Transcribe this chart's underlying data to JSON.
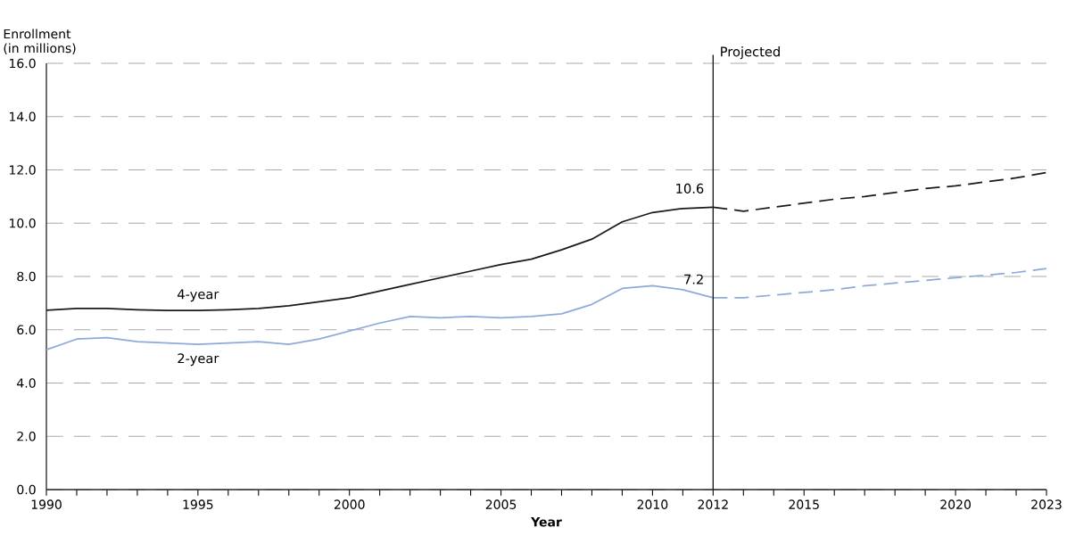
{
  "chart_data": {
    "type": "line",
    "xlabel": "Year",
    "ylabel": "Enrollment (in millions)",
    "xlim": [
      1990,
      2023
    ],
    "xticks": [
      1990,
      {
        "value": 1991,
        "label": null
      },
      {
        "value": 1992,
        "label": null
      },
      {
        "value": 1993,
        "label": null
      },
      {
        "value": 1994,
        "label": null
      },
      1995,
      {
        "value": 1996,
        "label": null
      },
      {
        "value": 1997,
        "label": null
      },
      {
        "value": 1998,
        "label": null
      },
      {
        "value": 1999,
        "label": null
      },
      2000,
      {
        "value": 2001,
        "label": null
      },
      {
        "value": 2002,
        "label": null
      },
      {
        "value": 2003,
        "label": null
      },
      {
        "value": 2004,
        "label": null
      },
      2005,
      {
        "value": 2006,
        "label": null
      },
      {
        "value": 2007,
        "label": null
      },
      {
        "value": 2008,
        "label": null
      },
      {
        "value": 2009,
        "label": null
      },
      2010,
      {
        "value": 2011,
        "label": null
      },
      2012,
      {
        "value": 2013,
        "label": null
      },
      {
        "value": 2014,
        "label": null
      },
      2015,
      {
        "value": 2016,
        "label": null
      },
      {
        "value": 2017,
        "label": null
      },
      {
        "value": 2018,
        "label": null
      },
      {
        "value": 2019,
        "label": null
      },
      2020,
      {
        "value": 2021,
        "label": null
      },
      {
        "value": 2022,
        "label": null
      },
      2023
    ],
    "ylim": [
      0,
      16
    ],
    "yticks": [
      {
        "value": 0,
        "label": "0.0"
      },
      {
        "value": 2,
        "label": "2.0"
      },
      {
        "value": 4,
        "label": "4.0"
      },
      {
        "value": 6,
        "label": "6.0"
      },
      {
        "value": 8,
        "label": "8.0"
      },
      {
        "value": 10,
        "label": "10.0"
      },
      {
        "value": 12,
        "label": "12.0"
      },
      {
        "value": 14,
        "label": "14.0"
      },
      {
        "value": 16,
        "label": "16.0"
      }
    ],
    "grid": "y",
    "marker": "none",
    "series": [
      {
        "name": "4-year",
        "color": "#1a1a1a",
        "line_style": "solid",
        "x": [
          1990,
          1991,
          1992,
          1993,
          1994,
          1995,
          1996,
          1997,
          1998,
          1999,
          2000,
          2001,
          2002,
          2003,
          2004,
          2005,
          2006,
          2007,
          2008,
          2009,
          2010,
          2011,
          2012
        ],
        "values": [
          6.73,
          6.8,
          6.8,
          6.75,
          6.72,
          6.72,
          6.75,
          6.8,
          6.9,
          7.05,
          7.2,
          7.45,
          7.7,
          7.95,
          8.2,
          8.45,
          8.65,
          9.0,
          9.4,
          10.05,
          10.4,
          10.55,
          10.6
        ]
      },
      {
        "name": "2-year",
        "color": "#8eaadb",
        "line_style": "solid",
        "x": [
          1990,
          1991,
          1992,
          1993,
          1994,
          1995,
          1996,
          1997,
          1998,
          1999,
          2000,
          2001,
          2002,
          2003,
          2004,
          2005,
          2006,
          2007,
          2008,
          2009,
          2010,
          2011,
          2012
        ],
        "values": [
          5.25,
          5.65,
          5.7,
          5.55,
          5.5,
          5.45,
          5.5,
          5.55,
          5.45,
          5.65,
          5.95,
          6.25,
          6.5,
          6.45,
          6.5,
          6.45,
          6.5,
          6.6,
          6.95,
          7.55,
          7.65,
          7.5,
          7.2
        ]
      },
      {
        "color": "#1a1a1a",
        "line_style": "dashed",
        "x": [
          2012,
          2013,
          2014,
          2015,
          2016,
          2017,
          2018,
          2019,
          2020,
          2021,
          2022,
          2023
        ],
        "values": [
          10.6,
          10.45,
          10.6,
          10.75,
          10.9,
          11.0,
          11.15,
          11.3,
          11.4,
          11.55,
          11.7,
          11.9
        ]
      },
      {
        "color": "#8eaadb",
        "line_style": "dashed",
        "x": [
          2012,
          2013,
          2014,
          2015,
          2016,
          2017,
          2018,
          2019,
          2020,
          2021,
          2022,
          2023
        ],
        "values": [
          7.2,
          7.2,
          7.3,
          7.4,
          7.5,
          7.65,
          7.75,
          7.85,
          7.95,
          8.05,
          8.15,
          8.3
        ]
      }
    ],
    "ref_lines": [
      {
        "axis": "x",
        "value": 2012,
        "label": "Projected",
        "color": "#1a1a1a"
      }
    ],
    "annotations": [
      {
        "text": "10.6",
        "x": 2012,
        "y": 10.6
      },
      {
        "text": "7.2",
        "x": 2012,
        "y": 7.2
      }
    ]
  }
}
